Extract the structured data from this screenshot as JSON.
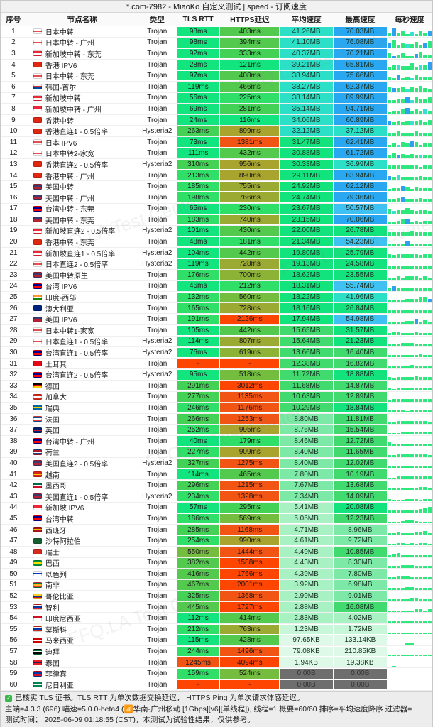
{
  "title": "*.com-7982 - MiaoKo 自定义测试 | speed - 订阅速度",
  "watermark": "FFQ.LA Test Center",
  "columns": {
    "index": "序号",
    "name": "节点名称",
    "type": "类型",
    "tls": "TLS RTT",
    "https": "HTTPS延迟",
    "avg": "平均速度",
    "max": "最高速度",
    "per_sec": "每秒速度"
  },
  "footer": {
    "check_icon": "✓",
    "line1": "已核实 TLS 证书。TLS RTT 为单次数据交换延迟， HTTPS Ping 为单次请求体感延迟。",
    "line2": "主端=4.3.3 (696) 喵速=5.0.0-beta4 (📶华南-广州移动 [1Gbps][v6][单线程]), 线程=1 概要=60/60 排序=平均速度降序 过滤器=",
    "line3": "测试时间： 2025-06-09 01:18:55 (CST)，本测试为试验性结果，仅供参考。"
  },
  "colors": {
    "ms_scale": [
      [
        130,
        "#12e57e"
      ],
      [
        260,
        "#2fdf68"
      ],
      [
        350,
        "#44d256"
      ],
      [
        470,
        "#53c94e"
      ],
      [
        600,
        "#74bd3e"
      ],
      [
        700,
        "#8cb236"
      ],
      [
        820,
        "#9aaa33"
      ],
      [
        1000,
        "#a8a42e"
      ],
      [
        1500,
        "#f25414"
      ],
      [
        999999,
        "#ff4502"
      ]
    ],
    "fail": "#ff4502",
    "speed_scale": [
      [
        0.5,
        "#dff9e9"
      ],
      [
        2,
        "#c8f6d8"
      ],
      [
        6.5,
        "#a8f1c2"
      ],
      [
        10,
        "#7ceaa6"
      ],
      [
        17,
        "#41da6e"
      ],
      [
        32,
        "#12e37c"
      ],
      [
        48,
        "#2ce0c8"
      ],
      [
        60,
        "#3fc1f2"
      ],
      [
        1000000,
        "#2aa7f1"
      ]
    ],
    "zero_bg": "#6e6e6e",
    "zero_fg": "#333333",
    "spark": [
      "#2ee87e",
      "#38dfd2",
      "#2f9ff0"
    ]
  },
  "flags": {
    "JP": [
      "#ffffff",
      "#e05050",
      "#ffffff"
    ],
    "SG": [
      "#ed2939",
      "#ffffff"
    ],
    "HK": [
      "#de2910"
    ],
    "KR": [
      "#f5f5f5",
      "#cd2e3a",
      "#0047a0"
    ],
    "US": [
      "#3c3b6e",
      "#b22234"
    ],
    "TW": [
      "#000095",
      "#fe0000"
    ],
    "IN": [
      "#ff9933",
      "#ffffff",
      "#138808"
    ],
    "AU": [
      "#00247d"
    ],
    "TR": [
      "#e30a17"
    ],
    "DE": [
      "#000000",
      "#dd0000",
      "#ffce00"
    ],
    "CA": [
      "#d52b1e",
      "#ffffff",
      "#d52b1e"
    ],
    "SE": [
      "#006aa7",
      "#fecc00",
      "#006aa7"
    ],
    "FR": [
      "#0055a4",
      "#ffffff",
      "#ef4135"
    ],
    "GB": [
      "#012169",
      "#c8102e",
      "#012169"
    ],
    "NL": [
      "#ae1c28",
      "#ffffff",
      "#21468b"
    ],
    "VN": [
      "#da251d",
      "#ffcd00",
      "#da251d"
    ],
    "MX": [
      "#006847",
      "#ffffff",
      "#ce1126"
    ],
    "ES": [
      "#aa151b",
      "#f1bf00",
      "#aa151b"
    ],
    "SA": [
      "#165d31"
    ],
    "CH": [
      "#d52b1e"
    ],
    "BR": [
      "#009739",
      "#fedd00",
      "#009739"
    ],
    "IL": [
      "#ffffff",
      "#0038b8",
      "#ffffff"
    ],
    "ZA": [
      "#007749",
      "#ffb81c",
      "#e03c31"
    ],
    "CO": [
      "#fcd116",
      "#003893",
      "#ce1126"
    ],
    "CL": [
      "#ffffff",
      "#0039a6",
      "#d52b1e"
    ],
    "ID": [
      "#ce1126",
      "#ffffff"
    ],
    "RU": [
      "#ffffff",
      "#0039a6",
      "#d52b1e"
    ],
    "MY": [
      "#cc0001",
      "#ffffff",
      "#cc0001"
    ],
    "AE": [
      "#00732f",
      "#ffffff",
      "#000000"
    ],
    "TH": [
      "#ed1c24",
      "#241d4f",
      "#ed1c24"
    ],
    "PH": [
      "#0038a8",
      "#ce1126"
    ],
    "NG": [
      "#008751",
      "#ffffff",
      "#008751"
    ]
  },
  "rows": [
    {
      "i": 1,
      "name": "日本中转",
      "cc": "JP",
      "type": "Trojan",
      "tls": "98ms",
      "https": "403ms",
      "avg": "41.26MB",
      "max": "70.03MB",
      "sh": "3935242635",
      "sc": "0200010002"
    },
    {
      "i": 2,
      "name": "日本中转 - 广州",
      "cc": "JP",
      "type": "Trojan",
      "tls": "98ms",
      "https": "394ms",
      "avg": "41.10MB",
      "max": "76.08MB",
      "sh": "4824335246",
      "sc": "2000100020"
    },
    {
      "i": 3,
      "name": "新加坡中转 - 东莞",
      "cc": "SG",
      "type": "Trojan",
      "tls": "92ms",
      "https": "333ms",
      "avg": "40.37MB",
      "max": "70.21MB",
      "sh": "5236224733",
      "sc": "0200002000"
    },
    {
      "i": 4,
      "name": "香港 IPV6",
      "cc": "HK",
      "type": "Trojan",
      "tls": "28ms",
      "https": "121ms",
      "avg": "39.21MB",
      "max": "65.81MB",
      "sh": "2453362548",
      "sc": "0010000102"
    },
    {
      "i": 5,
      "name": "日本中转 - 东莞",
      "cc": "JP",
      "type": "Trojan",
      "tls": "97ms",
      "https": "408ms",
      "avg": "38.94MB",
      "max": "75.66MB",
      "sh": "3262425344",
      "sc": "0020010000"
    },
    {
      "i": 6,
      "name": "韩国-首尔",
      "cc": "KR",
      "type": "Trojan",
      "tls": "119ms",
      "https": "466ms",
      "avg": "38.27MB",
      "max": "62.37MB",
      "sh": "4335253632",
      "sc": "0200100000"
    },
    {
      "i": 7,
      "name": "新加坡中转",
      "cc": "SG",
      "type": "Trojan",
      "tls": "56ms",
      "https": "225ms",
      "avg": "38.14MB",
      "max": "89.99MB",
      "sh": "2244526335",
      "sc": "0000210000"
    },
    {
      "i": 8,
      "name": "新加坡中转 - 广州",
      "cc": "SG",
      "type": "Trojan",
      "tls": "69ms",
      "https": "281ms",
      "avg": "35.14MB",
      "max": "94.71MB",
      "sh": "1335624243",
      "sc": "0000200010"
    },
    {
      "i": 9,
      "name": "香港中转",
      "cc": "HK",
      "type": "Trojan",
      "tls": "24ms",
      "https": "116ms",
      "avg": "34.06MB",
      "max": "60.89MB",
      "sh": "4232433525",
      "sc": "2000010000"
    },
    {
      "i": 10,
      "name": "香港直连1 - 0.5倍率",
      "cc": "HK",
      "type": "Hysteria2",
      "tls": "263ms",
      "https": "899ms",
      "avg": "32.12MB",
      "max": "37.12MB",
      "sh": "3343334333",
      "sc": "0000000000"
    },
    {
      "i": 11,
      "name": "日本 IPV6",
      "cc": "JP",
      "type": "Trojan",
      "tls": "73ms",
      "https": "1381ms",
      "avg": "31.47MB",
      "max": "62.41MB",
      "sh": "2425365233",
      "sc": "0010020000"
    },
    {
      "i": 12,
      "name": "日本中转2-家宽",
      "cc": "JP",
      "type": "Trojan",
      "tls": "111ms",
      "https": "432ms",
      "avg": "30.88MB",
      "max": "61.72MB",
      "sh": "3534243332",
      "sc": "0020000100"
    },
    {
      "i": 13,
      "name": "香港直连2 - 0.5倍率",
      "cc": "HK",
      "type": "Hysteria2",
      "tls": "310ms",
      "https": "956ms",
      "avg": "30.33MB",
      "max": "36.99MB",
      "sh": "4333343233",
      "sc": "0000000000"
    },
    {
      "i": 14,
      "name": "香港中转 - 广州",
      "cc": "HK",
      "type": "Trojan",
      "tls": "213ms",
      "https": "890ms",
      "avg": "29.11MB",
      "max": "63.94MB",
      "sh": "4253332432",
      "sc": "2010000000"
    },
    {
      "i": 15,
      "name": "美国中转",
      "cc": "US",
      "type": "Trojan",
      "tls": "185ms",
      "https": "755ms",
      "avg": "24.92MB",
      "max": "62.12MB",
      "sh": "2335424333",
      "sc": "0002000000"
    },
    {
      "i": 16,
      "name": "美国中转 - 广州",
      "cc": "US",
      "type": "Trojan",
      "tls": "198ms",
      "https": "766ms",
      "avg": "24.74MB",
      "max": "79.36MB",
      "sh": "2246333423",
      "sc": "0002000000"
    },
    {
      "i": 17,
      "name": "台湾中转 - 东莞",
      "cc": "TW",
      "type": "Trojan",
      "tls": "65ms",
      "https": "230ms",
      "avg": "23.67MB",
      "max": "50.57MB",
      "sh": "4233532332",
      "sc": "0100000000"
    },
    {
      "i": 18,
      "name": "美国中转 - 东莞",
      "cc": "US",
      "type": "Trojan",
      "tls": "183ms",
      "https": "740ms",
      "avg": "23.15MB",
      "max": "70.06MB",
      "sh": "2235623233",
      "sc": "0000200000"
    },
    {
      "i": 19,
      "name": "新加坡直连2 - 0.5倍率",
      "cc": "SG",
      "type": "Hysteria2",
      "tls": "101ms",
      "https": "430ms",
      "avg": "22.00MB",
      "max": "26.78MB",
      "sh": "3333343333",
      "sc": "0000000000"
    },
    {
      "i": 20,
      "name": "香港中转 - 东莞",
      "cc": "HK",
      "type": "Trojan",
      "tls": "48ms",
      "https": "181ms",
      "avg": "21.34MB",
      "max": "54.23MB",
      "sh": "2333523332",
      "sc": "0000200000"
    },
    {
      "i": 21,
      "name": "新加坡直连1 - 0.5倍率",
      "cc": "SG",
      "type": "Hysteria2",
      "tls": "104ms",
      "https": "442ms",
      "avg": "19.80MB",
      "max": "25.79MB",
      "sh": "3233333233",
      "sc": "0000000000"
    },
    {
      "i": 22,
      "name": "日本直连2 - 0.5倍率",
      "cc": "JP",
      "type": "Hysteria2",
      "tls": "119ms",
      "https": "728ms",
      "avg": "19.13MB",
      "max": "24.58MB",
      "sh": "2333232333",
      "sc": "0000000000"
    },
    {
      "i": 23,
      "name": "美国中转原生",
      "cc": "US",
      "type": "Trojan",
      "tls": "176ms",
      "https": "700ms",
      "avg": "18.62MB",
      "max": "23.55MB",
      "sh": "2232333232",
      "sc": "0000000000"
    },
    {
      "i": 24,
      "name": "台湾 IPV6",
      "cc": "TW",
      "type": "Trojan",
      "tls": "46ms",
      "https": "212ms",
      "avg": "18.31MB",
      "max": "55.74MB",
      "sh": "3523222232",
      "sc": "0200000000"
    },
    {
      "i": 25,
      "name": "印度-西部",
      "cc": "IN",
      "type": "Trojan",
      "tls": "132ms",
      "https": "560ms",
      "avg": "18.22MB",
      "max": "41.96MB",
      "sh": "2222333453",
      "sc": "0000000002"
    },
    {
      "i": 26,
      "name": "澳大利亚",
      "cc": "AU",
      "type": "Trojan",
      "tls": "165ms",
      "https": "728ms",
      "avg": "18.16MB",
      "max": "26.84MB",
      "sh": "2233322332",
      "sc": "0000000000"
    },
    {
      "i": 27,
      "name": "美国 IPV6",
      "cc": "US",
      "type": "Trojan",
      "tls": "191ms",
      "https": "2126ms",
      "avg": "17.94MB",
      "max": "54.98MB",
      "sh": "1222335242",
      "sc": "0000002000"
    },
    {
      "i": 28,
      "name": "日本中转1-家宽",
      "cc": "JP",
      "type": "Trojan",
      "tls": "105ms",
      "https": "442ms",
      "avg": "15.65MB",
      "max": "31.57MB",
      "sh": "2332223222",
      "sc": "0000000000"
    },
    {
      "i": 29,
      "name": "日本直连1 - 0.5倍率",
      "cc": "JP",
      "type": "Hysteria2",
      "tls": "114ms",
      "https": "807ms",
      "avg": "15.64MB",
      "max": "21.23MB",
      "sh": "2223332222",
      "sc": "0000000000"
    },
    {
      "i": 30,
      "name": "台湾直连1 - 0.5倍率",
      "cc": "TW",
      "type": "Hysteria2",
      "tls": "76ms",
      "https": "619ms",
      "avg": "13.66MB",
      "max": "16.40MB",
      "sh": "2222222322",
      "sc": "0000000000"
    },
    {
      "i": 31,
      "name": "土耳其",
      "cc": "TR",
      "type": "Trojan",
      "tls": "-",
      "https": "-",
      "avg": "12.38MB",
      "max": "16.82MB",
      "sh": "2222232222",
      "sc": "0000000000"
    },
    {
      "i": 32,
      "name": "台湾直连2 - 0.5倍率",
      "cc": "TW",
      "type": "Hysteria2",
      "tls": "95ms",
      "https": "518ms",
      "avg": "11.72MB",
      "max": "18.88MB",
      "sh": "2122223222",
      "sc": "0000000000"
    },
    {
      "i": 33,
      "name": "德国",
      "cc": "DE",
      "type": "Trojan",
      "tls": "291ms",
      "https": "3012ms",
      "avg": "11.68MB",
      "max": "14.87MB",
      "sh": "2122222222",
      "sc": "0000000000"
    },
    {
      "i": 34,
      "name": "加拿大",
      "cc": "CA",
      "type": "Trojan",
      "tls": "277ms",
      "https": "1135ms",
      "avg": "10.63MB",
      "max": "12.89MB",
      "sh": "1222222222",
      "sc": "0000000000"
    },
    {
      "i": 35,
      "name": "瑞典",
      "cc": "SE",
      "type": "Trojan",
      "tls": "246ms",
      "https": "1176ms",
      "avg": "10.29MB",
      "max": "18.84MB",
      "sh": "2232122222",
      "sc": "0000000000"
    },
    {
      "i": 36,
      "name": "法国",
      "cc": "FR",
      "type": "Trojan",
      "tls": "266ms",
      "https": "1253ms",
      "avg": "8.80MB",
      "max": "11.81MB",
      "sh": "1122222221",
      "sc": "0000000000"
    },
    {
      "i": 37,
      "name": "英国",
      "cc": "GB",
      "type": "Trojan",
      "tls": "252ms",
      "https": "995ms",
      "avg": "8.76MB",
      "max": "15.54MB",
      "sh": "1112223332",
      "sc": "0000000000"
    },
    {
      "i": 38,
      "name": "台湾中转 - 广州",
      "cc": "TW",
      "type": "Trojan",
      "tls": "40ms",
      "https": "179ms",
      "avg": "8.46MB",
      "max": "12.72MB",
      "sh": "3111222222",
      "sc": "0000000000"
    },
    {
      "i": 39,
      "name": "荷兰",
      "cc": "NL",
      "type": "Trojan",
      "tls": "227ms",
      "https": "909ms",
      "avg": "8.40MB",
      "max": "11.65MB",
      "sh": "1122222221",
      "sc": "0000000000"
    },
    {
      "i": 40,
      "name": "美国直连2 - 0.5倍率",
      "cc": "US",
      "type": "Hysteria2",
      "tls": "327ms",
      "https": "1275ms",
      "avg": "8.40MB",
      "max": "12.02MB",
      "sh": "1222221122",
      "sc": "0000000000"
    },
    {
      "i": 41,
      "name": "越南",
      "cc": "VN",
      "type": "Trojan",
      "tls": "114ms",
      "https": "465ms",
      "avg": "7.80MB",
      "max": "10.19MB",
      "sh": "1122222222",
      "sc": "0000000000"
    },
    {
      "i": 42,
      "name": "墨西哥",
      "cc": "MX",
      "type": "Trojan",
      "tls": "296ms",
      "https": "1215ms",
      "avg": "7.67MB",
      "max": "13.68MB",
      "sh": "1112222332",
      "sc": "0000000000"
    },
    {
      "i": 43,
      "name": "美国直连1 - 0.5倍率",
      "cc": "US",
      "type": "Hysteria2",
      "tls": "234ms",
      "https": "1328ms",
      "avg": "7.34MB",
      "max": "14.09MB",
      "sh": "2111222122",
      "sc": "0000000000"
    },
    {
      "i": 44,
      "name": "新加坡 IPV6",
      "cc": "SG",
      "type": "Trojan",
      "tls": "57ms",
      "https": "295ms",
      "avg": "5.41MB",
      "max": "20.08MB",
      "sh": "1111222345",
      "sc": "0000000000"
    },
    {
      "i": 45,
      "name": "台湾中转",
      "cc": "TW",
      "type": "Trojan",
      "tls": "186ms",
      "https": "569ms",
      "avg": "5.05MB",
      "max": "12.23MB",
      "sh": "1112332111",
      "sc": "0000000000"
    },
    {
      "i": 46,
      "name": "西班牙",
      "cc": "ES",
      "type": "Trojan",
      "tls": "285ms",
      "https": "1168ms",
      "avg": "4.71MB",
      "max": "8.96MB",
      "sh": "1121112231",
      "sc": "0000000000"
    },
    {
      "i": 47,
      "name": "沙特阿拉伯",
      "cc": "SA",
      "type": "Trojan",
      "tls": "254ms",
      "https": "990ms",
      "avg": "4.61MB",
      "max": "9.72MB",
      "sh": "1122121221",
      "sc": "0000000000"
    },
    {
      "i": 48,
      "name": "瑞士",
      "cc": "CH",
      "type": "Trojan",
      "tls": "550ms",
      "https": "1444ms",
      "avg": "4.49MB",
      "max": "10.85MB",
      "sh": "1231111111",
      "sc": "0000000000"
    },
    {
      "i": 49,
      "name": "巴西",
      "cc": "BR",
      "type": "Trojan",
      "tls": "382ms",
      "https": "1588ms",
      "avg": "4.43MB",
      "max": "8.30MB",
      "sh": "1112221111",
      "sc": "0000000000"
    },
    {
      "i": 50,
      "name": "以色列",
      "cc": "IL",
      "type": "Trojan",
      "tls": "416ms",
      "https": "1766ms",
      "avg": "4.39MB",
      "max": "7.80MB",
      "sh": "1122211111",
      "sc": "0000000000"
    },
    {
      "i": 51,
      "name": "南非",
      "cc": "ZA",
      "type": "Trojan",
      "tls": "467ms",
      "https": "2001ms",
      "avg": "3.92MB",
      "max": "6.98MB",
      "sh": "1111221111",
      "sc": "0000000000"
    },
    {
      "i": 52,
      "name": "哥伦比亚",
      "cc": "CO",
      "type": "Trojan",
      "tls": "325ms",
      "https": "1368ms",
      "avg": "2.99MB",
      "max": "9.01MB",
      "sh": "1111122111",
      "sc": "0000000000"
    },
    {
      "i": 53,
      "name": "智利",
      "cc": "CL",
      "type": "Trojan",
      "tls": "445ms",
      "https": "1727ms",
      "avg": "2.88MB",
      "max": "16.08MB",
      "sh": "1111112212",
      "sc": "0000000000"
    },
    {
      "i": 54,
      "name": "印度尼西亚",
      "cc": "ID",
      "type": "Trojan",
      "tls": "112ms",
      "https": "414ms",
      "avg": "2.83MB",
      "max": "4.02MB",
      "sh": "1111221111",
      "sc": "0000000000"
    },
    {
      "i": 55,
      "name": "莫斯科",
      "cc": "RU",
      "type": "Trojan",
      "tls": "212ms",
      "https": "763ms",
      "avg": "1.23MB",
      "max": "1.72MB",
      "sh": "1111111111",
      "sc": "0000000000"
    },
    {
      "i": 56,
      "name": "马来西亚",
      "cc": "MY",
      "type": "Trojan",
      "tls": "115ms",
      "https": "428ms",
      "avg": "97.65KB",
      "max": "133.14KB",
      "sh": "0000110000",
      "sc": "0000000000"
    },
    {
      "i": 57,
      "name": "迪拜",
      "cc": "AE",
      "type": "Trojan",
      "tls": "244ms",
      "https": "1496ms",
      "avg": "79.08KB",
      "max": "210.85KB",
      "sh": "0011000000",
      "sc": "0000000000"
    },
    {
      "i": 58,
      "name": "泰国",
      "cc": "TH",
      "type": "Trojan",
      "tls": "1245ms",
      "https": "4094ms",
      "avg": "1.94KB",
      "max": "19.38KB",
      "sh": "0100000000",
      "sc": "0000000000"
    },
    {
      "i": 59,
      "name": "菲律宾",
      "cc": "PH",
      "type": "Trojan",
      "tls": "159ms",
      "https": "524ms",
      "avg": "0.00B",
      "max": "0.00B",
      "sh": "",
      "sc": ""
    },
    {
      "i": 60,
      "name": "尼日利亚",
      "cc": "NG",
      "type": "Trojan",
      "tls": "-",
      "https": "-",
      "avg": "0.00B",
      "max": "0.00B",
      "sh": "",
      "sc": ""
    }
  ]
}
